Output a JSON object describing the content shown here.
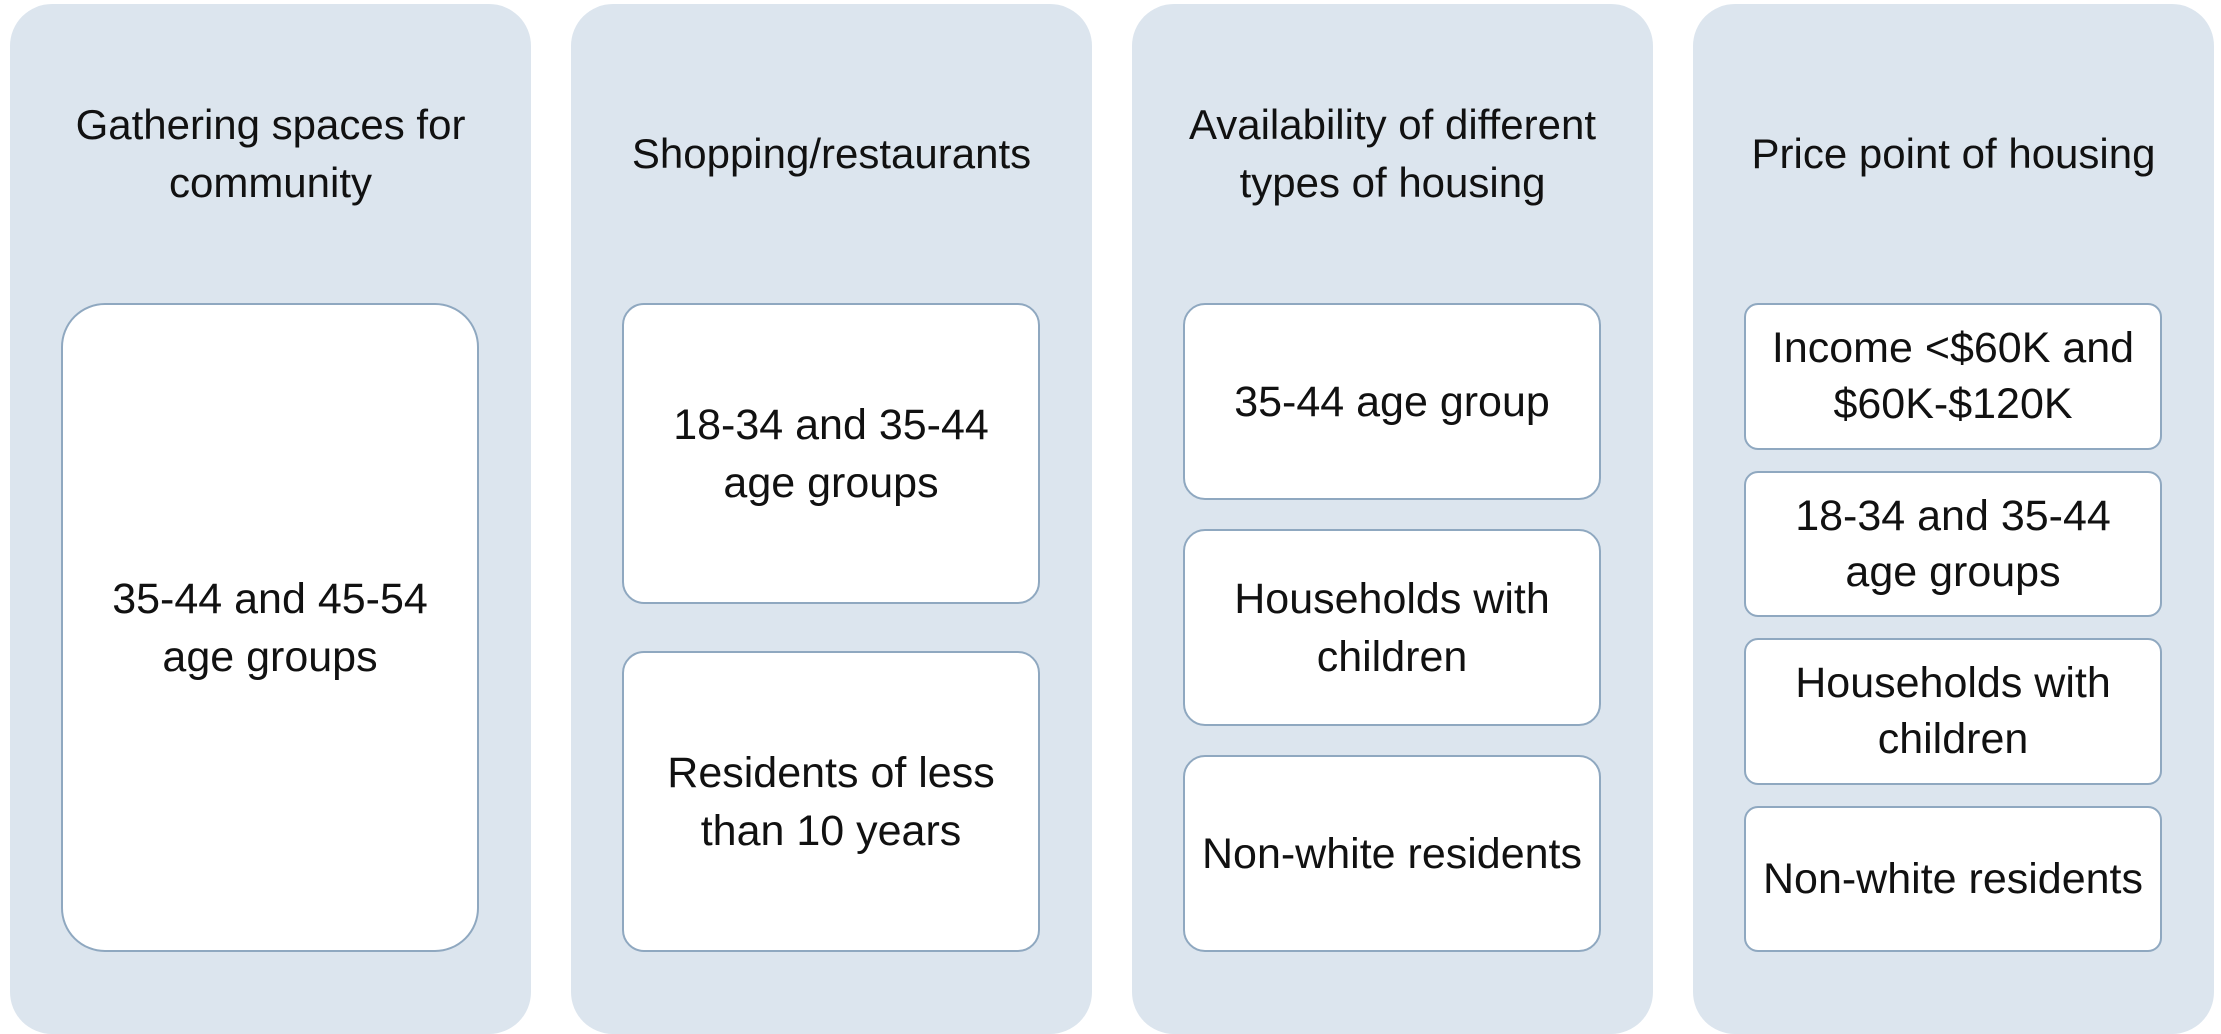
{
  "columns": [
    {
      "title": "Gathering spaces for community",
      "items": [
        "35-44 and 45-54 age groups"
      ]
    },
    {
      "title": "Shopping/restaurants",
      "items": [
        "18-34 and 35-44 age groups",
        "Residents of less than 10 years"
      ]
    },
    {
      "title": "Availability of different types of housing",
      "items": [
        "35-44 age group",
        "Households with children",
        "Non-white residents"
      ]
    },
    {
      "title": "Price point of housing",
      "items": [
        "Income <$60K and $60K-$120K",
        "18-34 and 35-44 age groups",
        "Households with children",
        "Non-white residents"
      ]
    }
  ]
}
